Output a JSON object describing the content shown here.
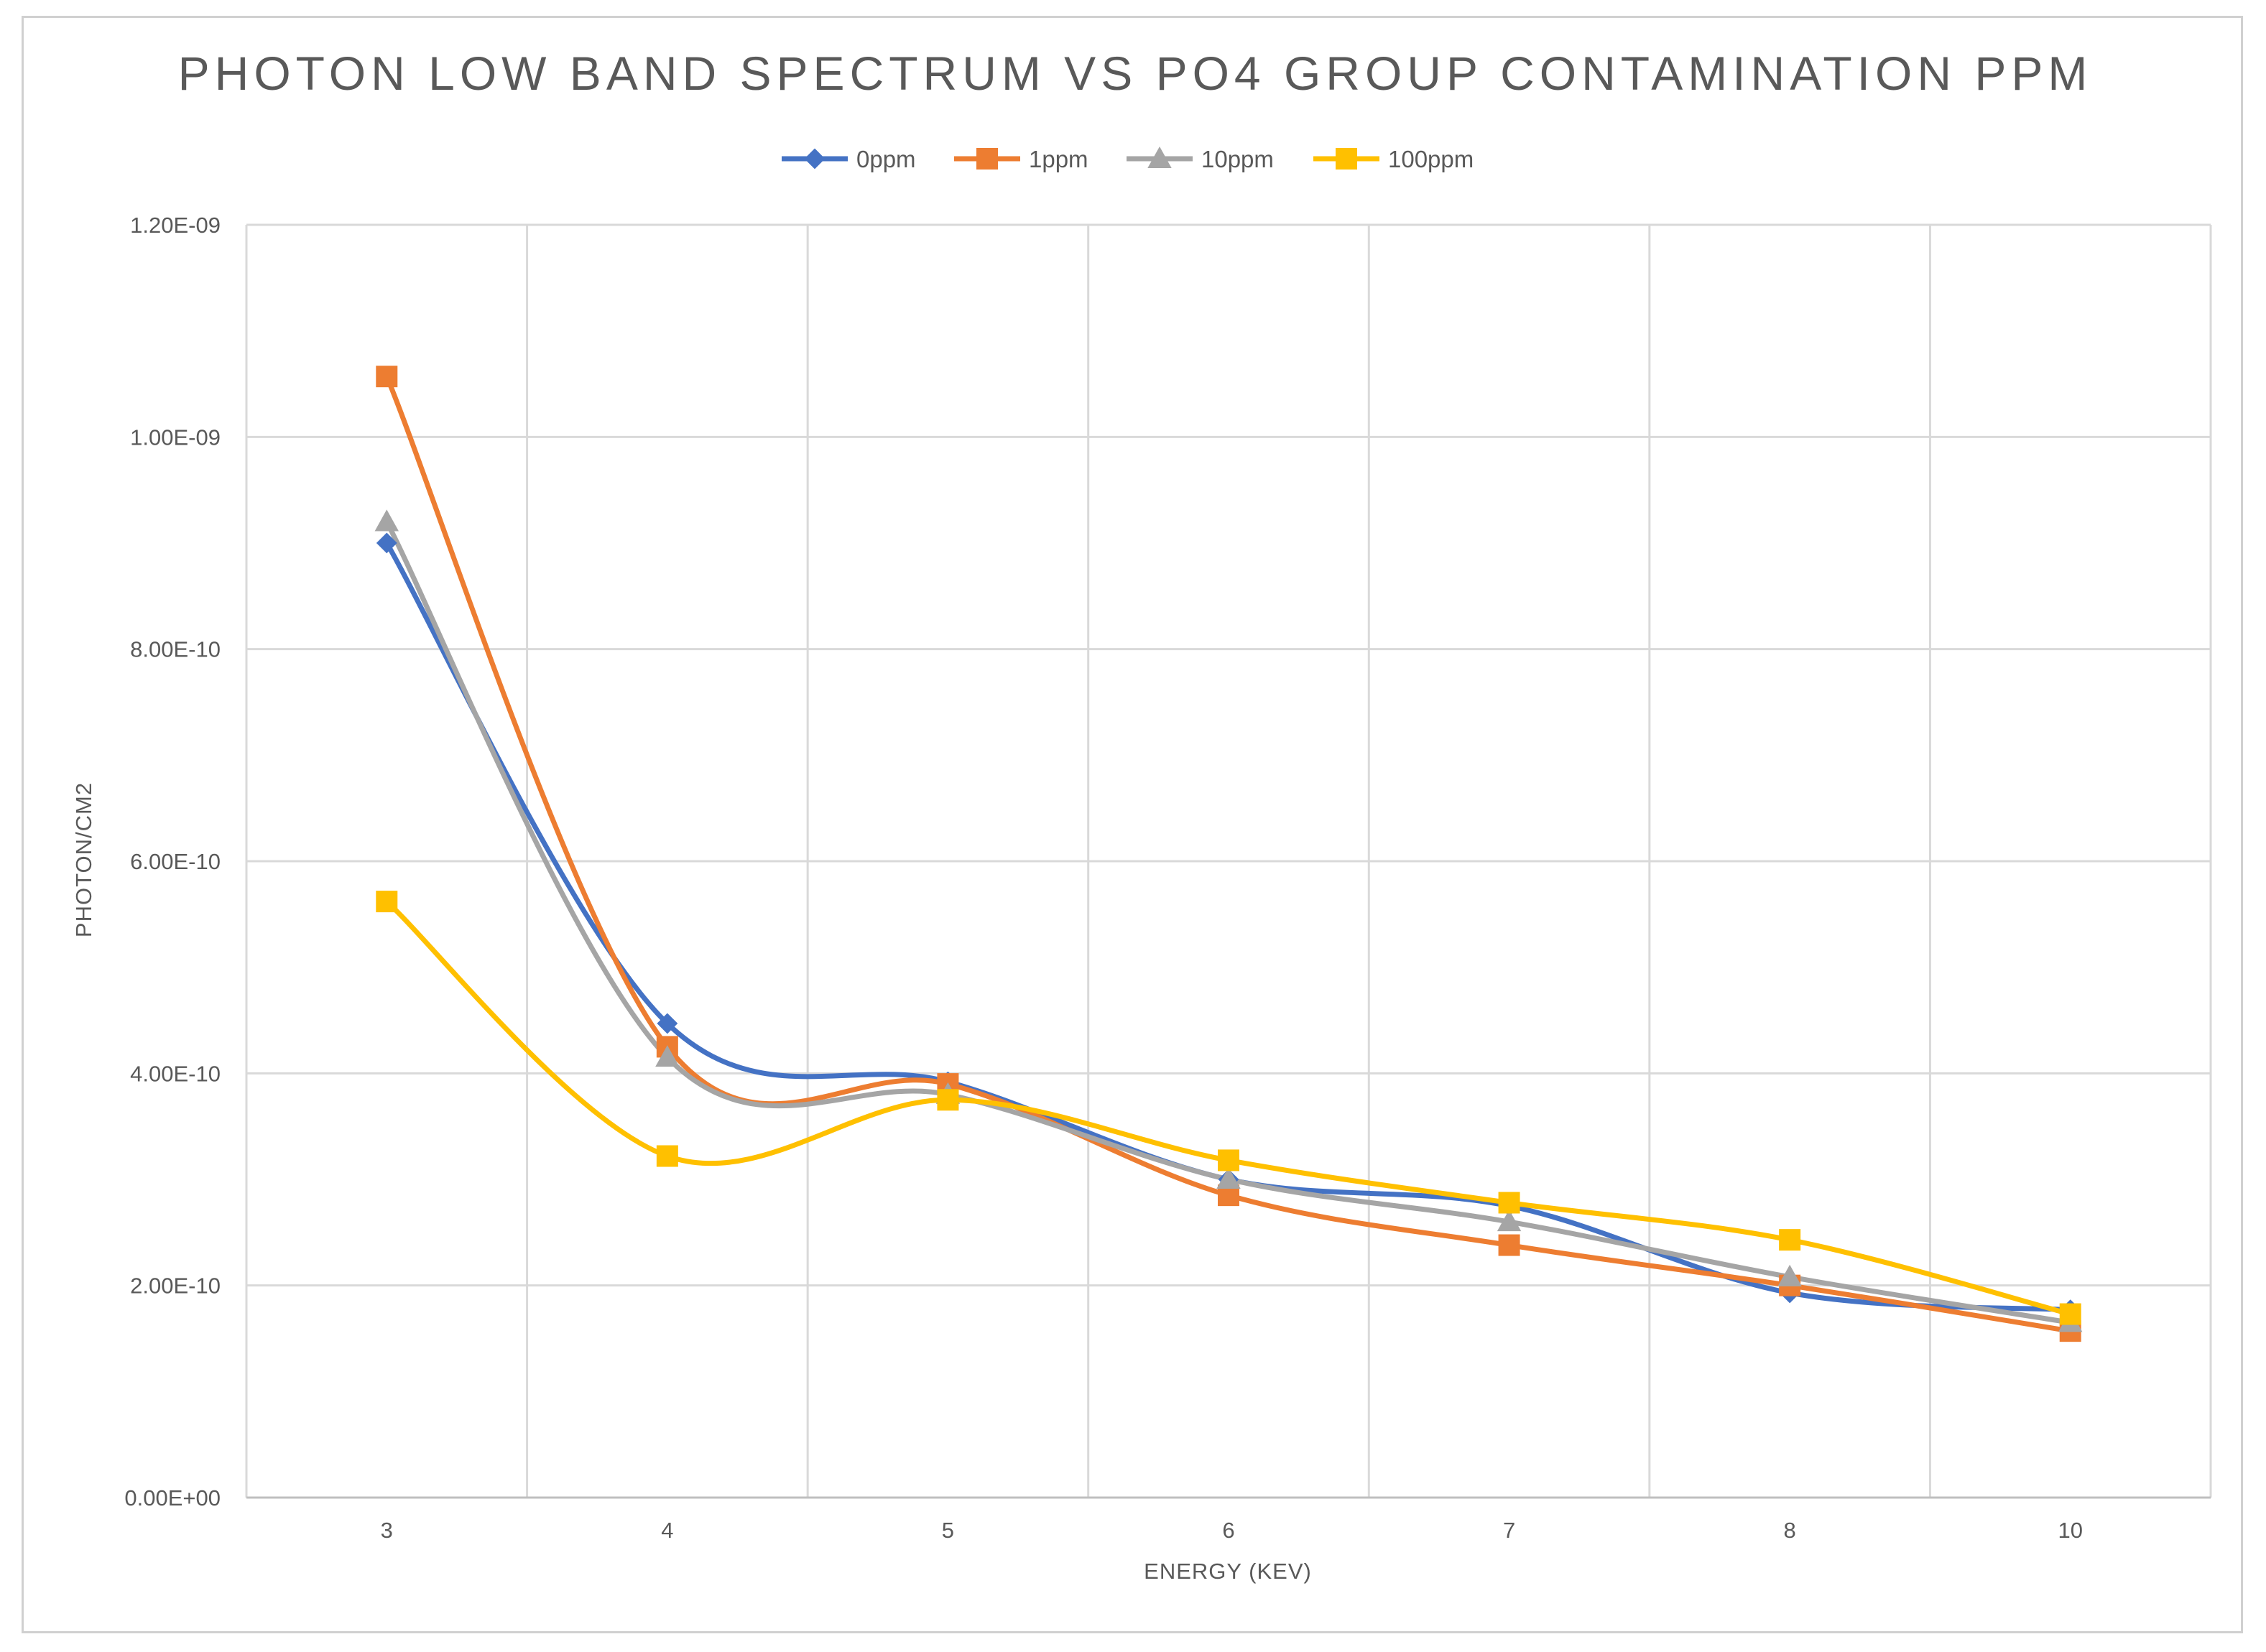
{
  "chart_data": {
    "type": "line",
    "smoothed": true,
    "title": "PHOTON LOW BAND SPECTRUM VS PO4 GROUP CONTAMINATION PPM",
    "xlabel": "ENERGY (KEV)",
    "ylabel": "PHOTON/CM2",
    "categories": [
      "3",
      "4",
      "5",
      "6",
      "7",
      "8",
      "10"
    ],
    "y_tick_labels": [
      "0.00E+00",
      "2.00E-10",
      "4.00E-10",
      "6.00E-10",
      "8.00E-10",
      "1.00E-09",
      "1.20E-09"
    ],
    "ylim": [
      0,
      1.2e-09
    ],
    "y_step": 2e-10,
    "grid": true,
    "legend_position": "top",
    "series": [
      {
        "name": "0ppm",
        "color": "#4472C4",
        "marker": "diamond",
        "values": [
          9e-10,
          4.47e-10,
          3.92e-10,
          3e-10,
          2.75e-10,
          1.93e-10,
          1.77e-10
        ]
      },
      {
        "name": "1ppm",
        "color": "#ED7D31",
        "marker": "square",
        "values": [
          1.057e-09,
          4.25e-10,
          3.9e-10,
          2.85e-10,
          2.38e-10,
          2e-10,
          1.57e-10
        ]
      },
      {
        "name": "10ppm",
        "color": "#A5A5A5",
        "marker": "triangle",
        "values": [
          9.2e-10,
          4.15e-10,
          3.8e-10,
          3e-10,
          2.6e-10,
          2.08e-10,
          1.65e-10
        ]
      },
      {
        "name": "100ppm",
        "color": "#FFC000",
        "marker": "square",
        "values": [
          5.62e-10,
          3.22e-10,
          3.75e-10,
          3.18e-10,
          2.78e-10,
          2.43e-10,
          1.73e-10
        ]
      }
    ]
  }
}
